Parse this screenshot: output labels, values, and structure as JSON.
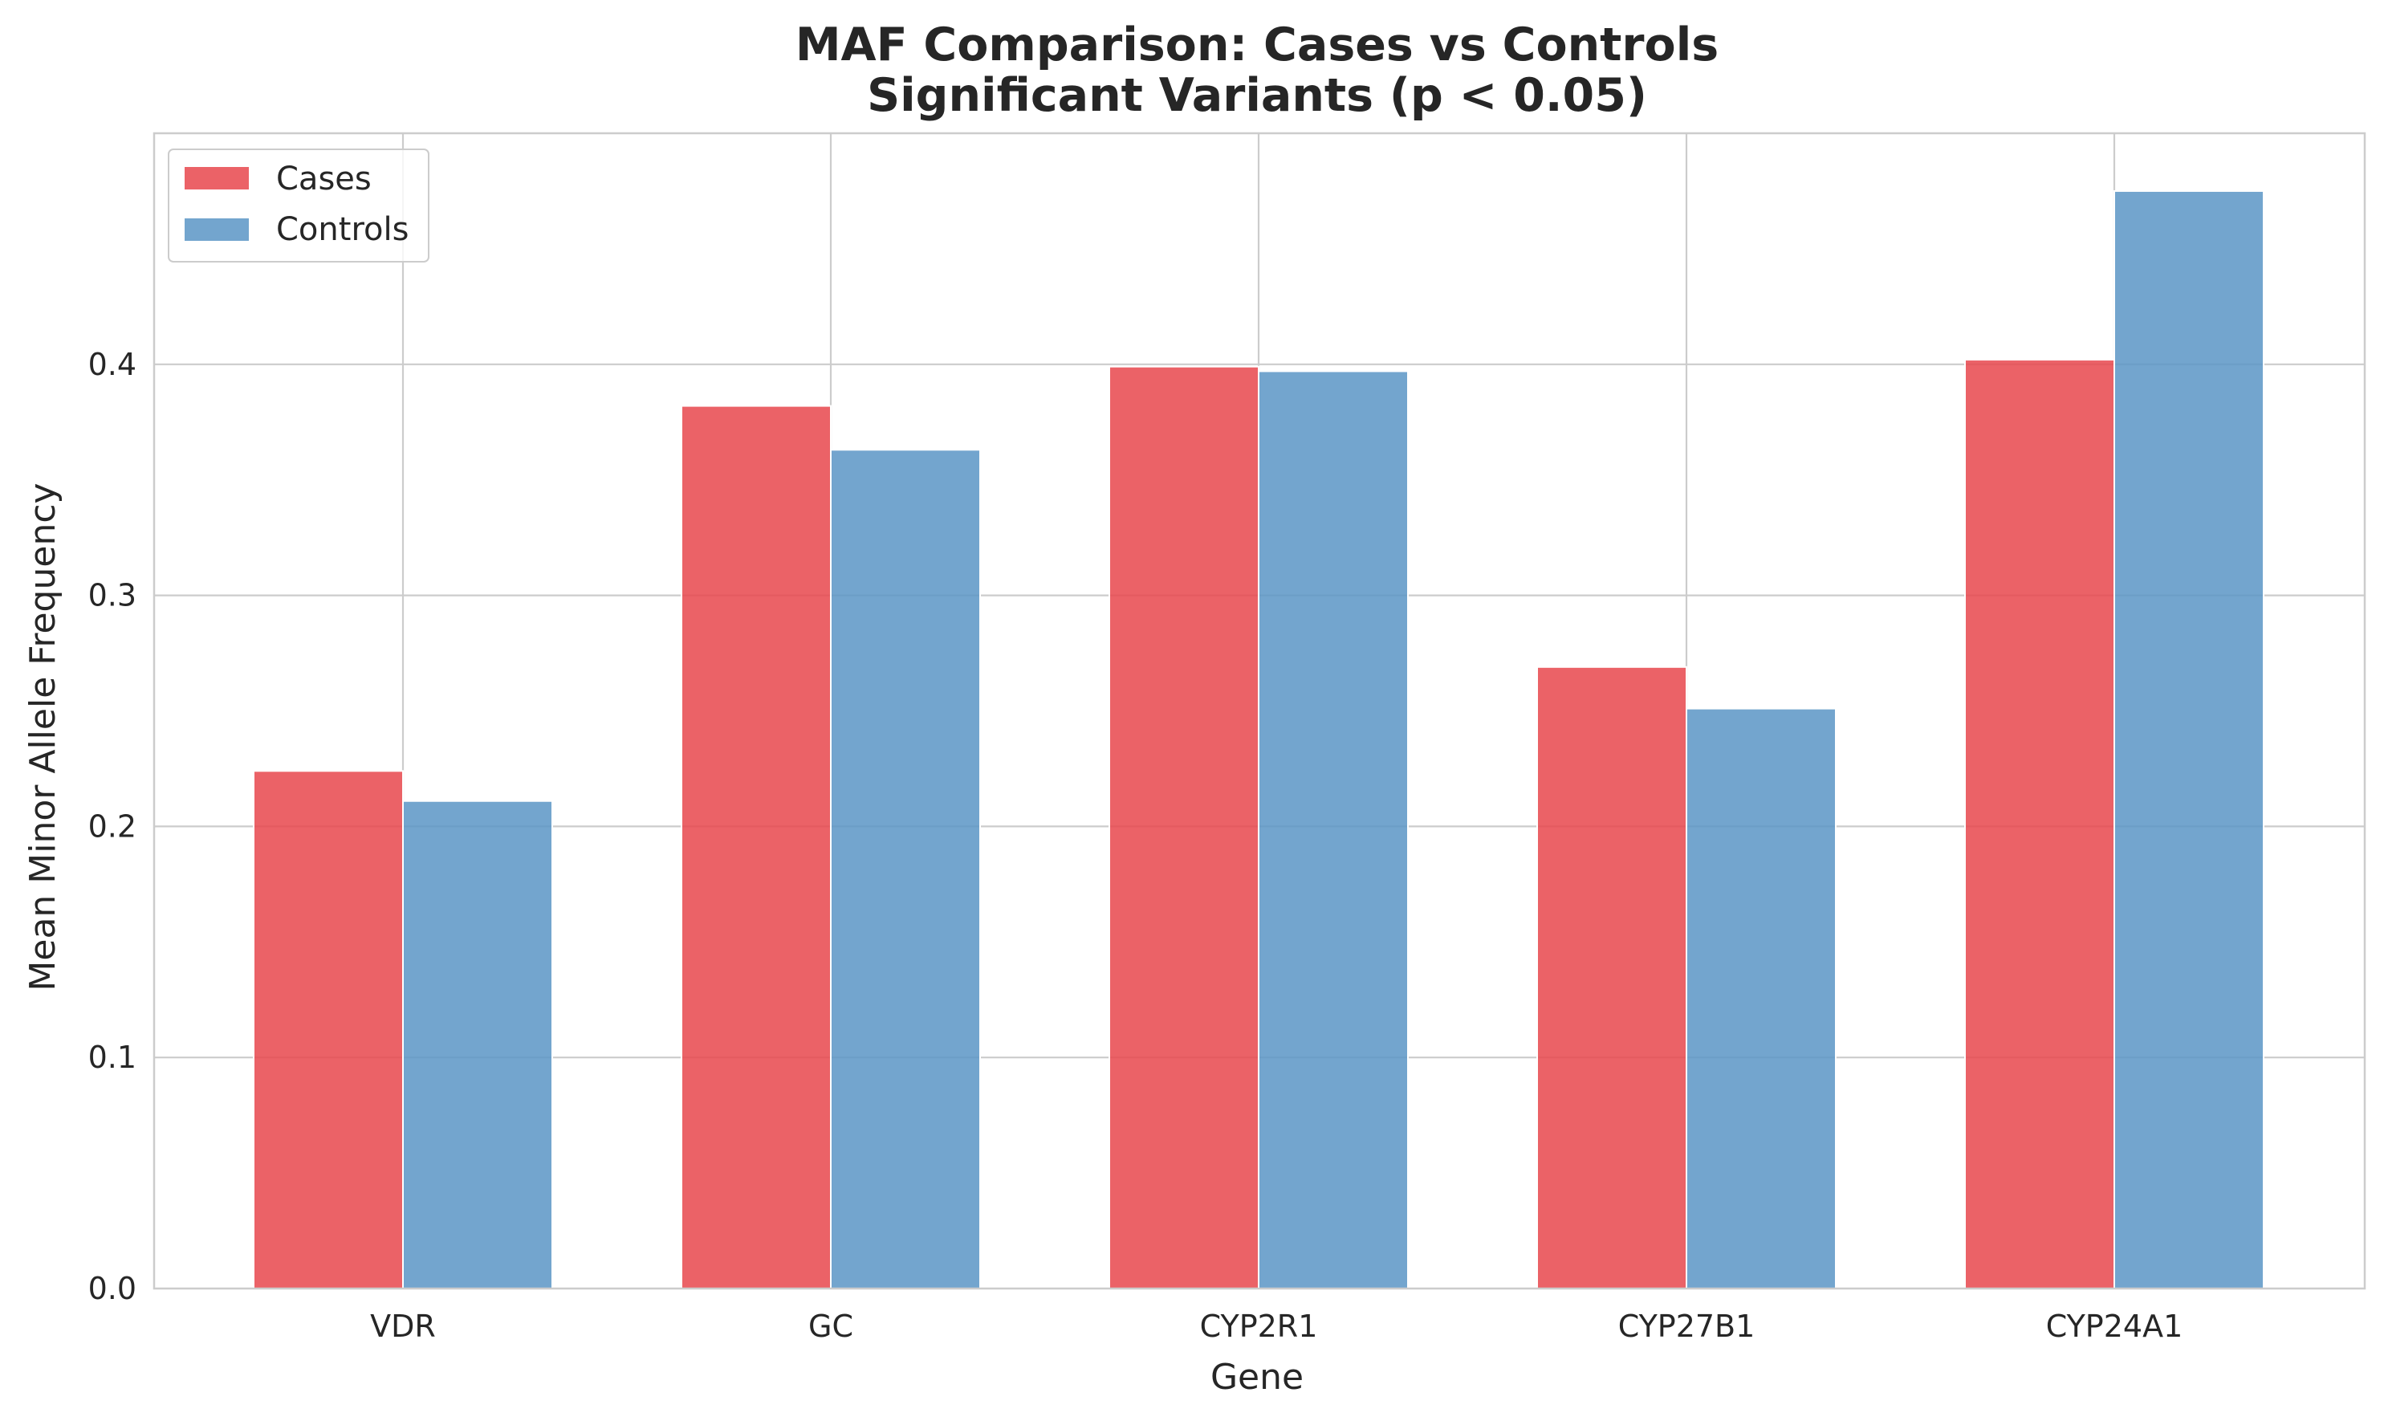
{
  "chart_data": {
    "type": "bar",
    "title": "MAF Comparison: Cases vs Controls",
    "subtitle": "Significant Variants (p < 0.05)",
    "xlabel": "Gene",
    "ylabel": "Mean Minor Allele Frequency",
    "categories": [
      "VDR",
      "GC",
      "CYP2R1",
      "CYP27B1",
      "CYP24A1"
    ],
    "series": [
      {
        "name": "Cases",
        "color": "#e8474c",
        "values": [
          0.224,
          0.382,
          0.399,
          0.269,
          0.402
        ]
      },
      {
        "name": "Controls",
        "color": "#5b95c6",
        "values": [
          0.211,
          0.363,
          0.397,
          0.251,
          0.475
        ]
      }
    ],
    "ylim": [
      0,
      0.5
    ],
    "yticks": [
      "0.0",
      "0.1",
      "0.2",
      "0.3",
      "0.4"
    ],
    "grid": true,
    "legend_position": "top-left"
  }
}
